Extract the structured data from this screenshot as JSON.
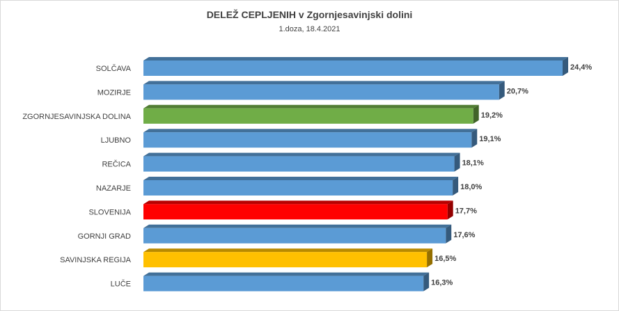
{
  "chart_data": {
    "type": "bar",
    "orientation": "horizontal",
    "title": "DELEŽ CEPLJENIH v Zgornjesavinjski dolini",
    "subtitle": "1.doza, 18.4.2021",
    "categories": [
      "SOLČAVA",
      "MOZIRJE",
      "ZGORNJESAVINJSKA DOLINA",
      "LJUBNO",
      "REČICA",
      "NAZARJE",
      "SLOVENIJA",
      "GORNJI GRAD",
      "SAVINJSKA REGIJA",
      "LUČE"
    ],
    "values": [
      24.4,
      20.7,
      19.2,
      19.1,
      18.1,
      18.0,
      17.7,
      17.6,
      16.5,
      16.3
    ],
    "labels": [
      "24,4%",
      "20,7%",
      "19,2%",
      "19,1%",
      "18,1%",
      "18,0%",
      "17,7%",
      "17,6%",
      "16,5%",
      "16,3%"
    ],
    "colors": [
      "#5b9bd5",
      "#5b9bd5",
      "#70ad47",
      "#5b9bd5",
      "#5b9bd5",
      "#5b9bd5",
      "#ff0000",
      "#5b9bd5",
      "#ffc000",
      "#5b9bd5"
    ],
    "xlim": [
      0,
      24.4
    ],
    "grid": false,
    "legend": "none"
  }
}
